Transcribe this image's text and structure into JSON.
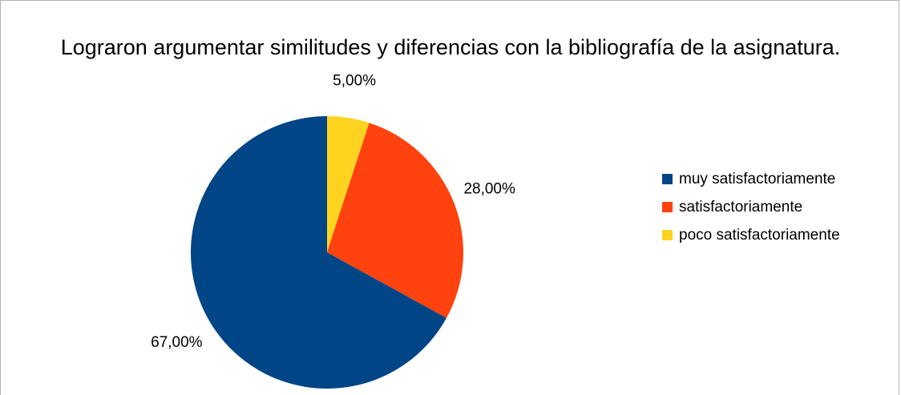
{
  "chart_data": {
    "type": "pie",
    "title": "Lograron argumentar similitudes y diferencias con la bibliografía de la asignatura.",
    "slices": [
      {
        "name": "muy satisfactoriamente",
        "value": 67.0,
        "label": "67,00%",
        "color": "#004586"
      },
      {
        "name": "satisfactoriamente",
        "value": 28.0,
        "label": "28,00%",
        "color": "#ff420e"
      },
      {
        "name": "poco satisfactoriamente",
        "value": 5.0,
        "label": "5,00%",
        "color": "#ffd320"
      }
    ],
    "legend_position": "right"
  }
}
